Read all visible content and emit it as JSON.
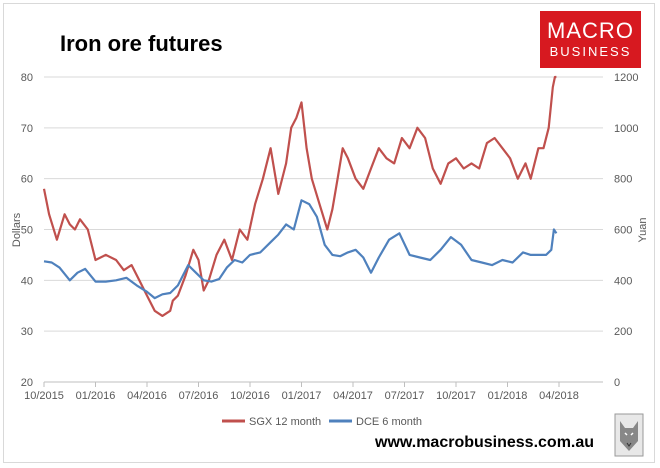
{
  "brand": {
    "logo_top": "MACRO",
    "logo_bottom": "BUSINESS",
    "url": "www.macrobusiness.com.au"
  },
  "colors": {
    "sgx": "#c0504d",
    "dce": "#4f81bd",
    "grid": "#d9d9d9",
    "text": "#595959",
    "brand_red": "#d71920"
  },
  "chart_data": {
    "type": "line",
    "title": "Iron ore futures",
    "ylabel": "Dollars",
    "y2label": "Yuan",
    "x_ticks": [
      "10/2015",
      "01/2016",
      "04/2016",
      "07/2016",
      "10/2016",
      "01/2017",
      "04/2017",
      "07/2017",
      "10/2017",
      "01/2018",
      "04/2018"
    ],
    "ylim": [
      20,
      80
    ],
    "y_ticks": [
      "20",
      "30",
      "40",
      "50",
      "60",
      "70",
      "80"
    ],
    "y2lim": [
      0,
      1200
    ],
    "y2_ticks": [
      "0",
      "200",
      "400",
      "600",
      "800",
      "1000",
      "1200"
    ],
    "grid": true,
    "legend": "bottom",
    "series": [
      {
        "name": "SGX 12 month",
        "axis": "left",
        "x": [
          0,
          0.1,
          0.25,
          0.4,
          0.5,
          0.6,
          0.7,
          0.85,
          1.0,
          1.2,
          1.4,
          1.55,
          1.7,
          1.85,
          2.0,
          2.15,
          2.3,
          2.45,
          2.5,
          2.6,
          2.75,
          2.9,
          3.0,
          3.1,
          3.2,
          3.35,
          3.5,
          3.65,
          3.8,
          3.95,
          4.1,
          4.25,
          4.4,
          4.55,
          4.7,
          4.8,
          4.9,
          5.0,
          5.1,
          5.2,
          5.35,
          5.5,
          5.6,
          5.7,
          5.8,
          5.9,
          6.05,
          6.2,
          6.35,
          6.5,
          6.65,
          6.8,
          6.95,
          7.1,
          7.25,
          7.4,
          7.55,
          7.7,
          7.85,
          8.0,
          8.15,
          8.3,
          8.45,
          8.6,
          8.75,
          8.9,
          9.05,
          9.2,
          9.35,
          9.45,
          9.6,
          9.7,
          9.8,
          9.88,
          9.92,
          9.95
        ],
        "values": [
          58,
          53,
          48,
          53,
          51,
          50,
          52,
          50,
          44,
          45,
          44,
          42,
          43,
          40,
          37,
          34,
          33,
          34,
          36,
          37,
          41,
          46,
          44,
          38,
          40,
          45,
          48,
          44,
          50,
          48,
          55,
          60,
          66,
          57,
          63,
          70,
          72,
          75,
          66,
          60,
          55,
          50,
          54,
          60,
          66,
          64,
          60,
          58,
          62,
          66,
          64,
          63,
          68,
          66,
          70,
          68,
          62,
          59,
          63,
          64,
          62,
          63,
          62,
          67,
          68,
          66,
          64,
          60,
          63,
          60,
          66,
          66,
          70,
          78,
          80,
          80
        ]
      },
      {
        "name": "DCE 6 month",
        "axis": "right",
        "x": [
          0,
          0.15,
          0.3,
          0.5,
          0.65,
          0.8,
          1.0,
          1.2,
          1.4,
          1.6,
          1.8,
          2.0,
          2.15,
          2.3,
          2.45,
          2.6,
          2.8,
          2.95,
          3.1,
          3.25,
          3.4,
          3.55,
          3.7,
          3.85,
          4.0,
          4.2,
          4.4,
          4.55,
          4.7,
          4.85,
          5.0,
          5.15,
          5.3,
          5.45,
          5.6,
          5.75,
          5.9,
          6.05,
          6.2,
          6.35,
          6.5,
          6.7,
          6.9,
          7.1,
          7.3,
          7.5,
          7.7,
          7.9,
          8.1,
          8.3,
          8.5,
          8.7,
          8.9,
          9.1,
          9.3,
          9.45,
          9.6,
          9.75,
          9.85,
          9.9,
          9.95
        ],
        "values": [
          475,
          470,
          450,
          400,
          430,
          445,
          395,
          395,
          400,
          410,
          380,
          355,
          330,
          345,
          350,
          380,
          460,
          430,
          400,
          395,
          405,
          450,
          480,
          470,
          500,
          510,
          550,
          580,
          620,
          600,
          715,
          700,
          650,
          540,
          500,
          495,
          510,
          520,
          490,
          430,
          490,
          560,
          585,
          500,
          490,
          480,
          520,
          570,
          540,
          480,
          470,
          460,
          480,
          470,
          510,
          500,
          500,
          500,
          520,
          600,
          585
        ]
      }
    ]
  }
}
